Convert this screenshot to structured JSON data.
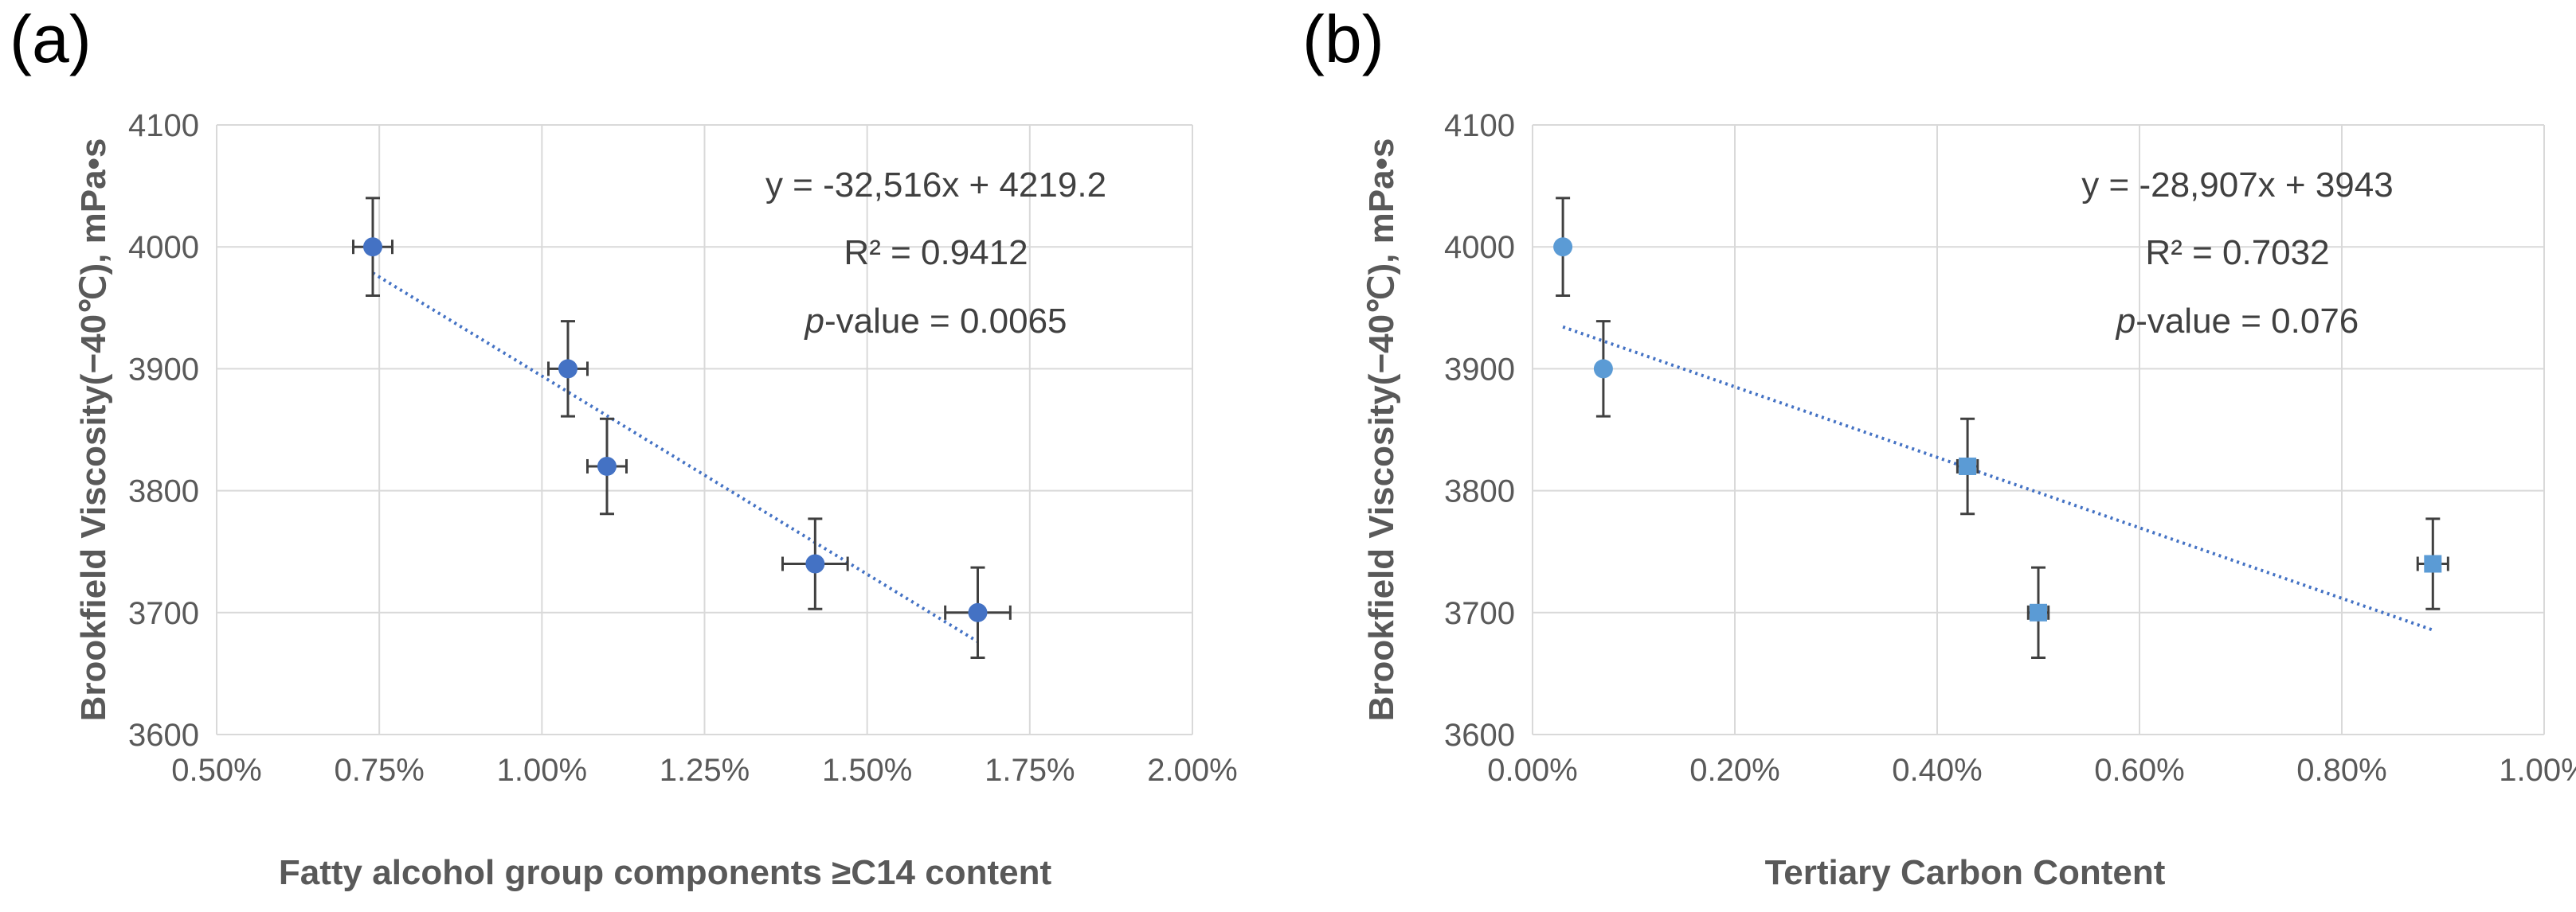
{
  "chart_data": [
    {
      "type": "scatter",
      "panel_label": "(a)",
      "xlabel": "Fatty alcohol group components ≥C14 content",
      "ylabel": "Brookfield Viscosity(−40℃), mPa•s",
      "x_ticks": [
        "0.50%",
        "0.75%",
        "1.00%",
        "1.25%",
        "1.50%",
        "1.75%",
        "2.00%"
      ],
      "y_ticks": [
        "3600",
        "3700",
        "3800",
        "3900",
        "4000",
        "4100"
      ],
      "xlim": [
        0.005,
        0.02
      ],
      "ylim": [
        3600,
        4100
      ],
      "grid": "vertical and horizontal",
      "marker_color": "#4472c4",
      "marker_shape": "circle",
      "points": [
        {
          "x": 0.0074,
          "y": 4000,
          "xerr": 0.0003,
          "yerr": 40
        },
        {
          "x": 0.0104,
          "y": 3900,
          "xerr": 0.0003,
          "yerr": 39
        },
        {
          "x": 0.011,
          "y": 3820,
          "xerr": 0.0003,
          "yerr": 39
        },
        {
          "x": 0.0142,
          "y": 3740,
          "xerr": 0.0005,
          "yerr": 37
        },
        {
          "x": 0.0167,
          "y": 3700,
          "xerr": 0.0005,
          "yerr": 37
        }
      ],
      "trendline": {
        "slope": -32516,
        "intercept": 4219.2,
        "x_range": [
          0.0074,
          0.0167
        ],
        "style": "dotted",
        "color": "#4472c4"
      },
      "annotations": {
        "equation": "y = -32,516x + 4219.2",
        "r2": "R² = 0.9412",
        "p_prefix": "p",
        "p_value": "-value = 0.0065"
      }
    },
    {
      "type": "scatter",
      "panel_label": "(b)",
      "xlabel": "Tertiary Carbon Content",
      "ylabel": "Brookfield Viscosity(−40℃), mPa•s",
      "x_ticks": [
        "0.00%",
        "0.20%",
        "0.40%",
        "0.60%",
        "0.80%",
        "1.00%"
      ],
      "y_ticks": [
        "3600",
        "3700",
        "3800",
        "3900",
        "4000",
        "4100"
      ],
      "xlim": [
        0,
        0.01
      ],
      "ylim": [
        3600,
        4100
      ],
      "grid": "vertical and horizontal",
      "marker_color": "#5b9bd5",
      "marker_shape": "mixed",
      "points": [
        {
          "x": 0.0003,
          "y": 4000,
          "shape": "circle",
          "xerr": 0,
          "yerr": 40
        },
        {
          "x": 0.0007,
          "y": 3900,
          "shape": "circle",
          "xerr": 0,
          "yerr": 39
        },
        {
          "x": 0.0043,
          "y": 3820,
          "shape": "square",
          "xerr": 0.0001,
          "yerr": 39
        },
        {
          "x": 0.005,
          "y": 3700,
          "shape": "square",
          "xerr": 0.0001,
          "yerr": 37
        },
        {
          "x": 0.0089,
          "y": 3740,
          "shape": "square",
          "xerr": 0.00015,
          "yerr": 37
        }
      ],
      "trendline": {
        "slope": -28907,
        "intercept": 3943,
        "x_range": [
          0.0003,
          0.0089
        ],
        "style": "dotted",
        "color": "#5b9bd5"
      },
      "annotations": {
        "equation": "y = -28,907x + 3943",
        "r2": "R² = 0.7032",
        "p_prefix": "p",
        "p_value": "-value = 0.076"
      }
    }
  ]
}
